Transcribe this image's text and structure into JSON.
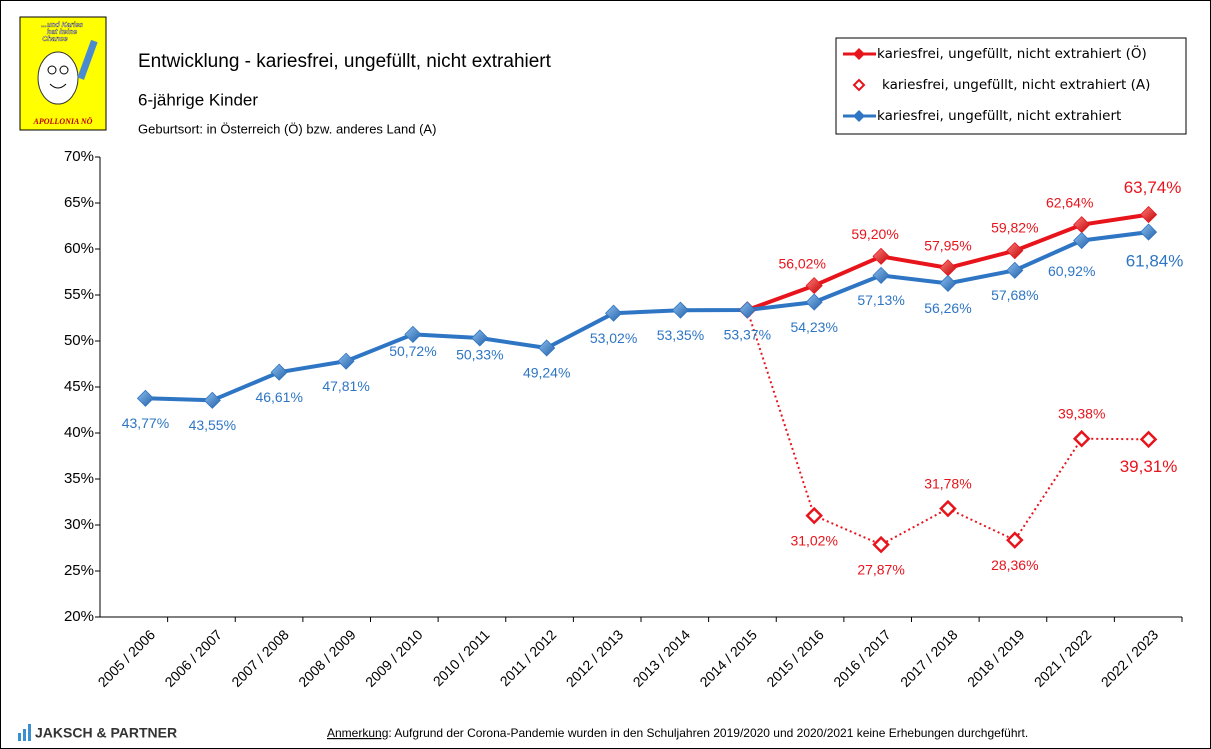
{
  "logo": {
    "lines": [
      "...und Karies",
      "hat keine",
      "Chance"
    ],
    "brand": "APOLLONIA NÖ"
  },
  "chart_data": {
    "type": "line",
    "title": "Entwicklung  - kariesfrei, ungefüllt,  nicht extrahiert",
    "subtitle": "6-jährige  Kinder",
    "note": "Geburtsort:  in Österreich (Ö) bzw. anderes Land (A)",
    "categories": [
      "2005 / 2006",
      "2006 / 2007",
      "2007 / 2008",
      "2008 / 2009",
      "2009 / 2010",
      "2010 / 2011",
      "2011 / 2012",
      "2012 / 2013",
      "2013 / 2014",
      "2014 / 2015",
      "2015 / 2016",
      "2016 / 2017",
      "2017 / 2018",
      "2018 / 2019",
      "2021 / 2022",
      "2022 / 2023"
    ],
    "series": [
      {
        "name": "kariesfrei, ungefüllt, nicht extrahiert (A)",
        "color": "#e8141c",
        "line_style": "dotted",
        "marker": "open-diamond",
        "values": [
          null,
          null,
          null,
          null,
          null,
          null,
          null,
          null,
          null,
          53.37,
          31.02,
          27.87,
          31.78,
          28.36,
          39.38,
          39.31
        ],
        "value_labels": [
          null,
          null,
          null,
          null,
          null,
          null,
          null,
          null,
          null,
          null,
          "31,02%",
          "27,87%",
          "31,78%",
          "28,36%",
          "39,38%",
          "39,31%"
        ]
      },
      {
        "name": "kariesfrei, ungefüllt, nicht extrahiert (Ö)",
        "color": "#e8141c",
        "line_style": "solid",
        "marker": "diamond",
        "values": [
          null,
          null,
          null,
          null,
          null,
          null,
          null,
          null,
          null,
          53.37,
          56.02,
          59.2,
          57.95,
          59.82,
          62.64,
          63.74
        ],
        "value_labels": [
          null,
          null,
          null,
          null,
          null,
          null,
          null,
          null,
          null,
          null,
          "56,02%",
          "59,20%",
          "57,95%",
          "59,82%",
          "62,64%",
          "63,74%"
        ]
      },
      {
        "name": "kariesfrei, ungefüllt, nicht extrahiert",
        "color": "#2e75c4",
        "line_style": "solid",
        "marker": "diamond",
        "values": [
          43.77,
          43.55,
          46.61,
          47.81,
          50.72,
          50.33,
          49.24,
          53.02,
          53.35,
          53.37,
          54.23,
          57.13,
          56.26,
          57.68,
          60.92,
          61.84
        ],
        "value_labels": [
          "43,77%",
          "43,55%",
          "46,61%",
          "47,81%",
          "50,72%",
          "50,33%",
          "49,24%",
          "53,02%",
          "53,35%",
          "53,37%",
          "54,23%",
          "57,13%",
          "56,26%",
          "57,68%",
          "60,92%",
          "61,84%"
        ]
      }
    ],
    "legend_order": [
      1,
      0,
      2
    ],
    "legend": "top-right",
    "ylim": [
      20,
      70
    ],
    "yticks": [
      {
        "value": 20,
        "label": "20%"
      },
      {
        "value": 25,
        "label": "25%"
      },
      {
        "value": 30,
        "label": "30%"
      },
      {
        "value": 35,
        "label": "35%"
      },
      {
        "value": 40,
        "label": "40%"
      },
      {
        "value": 45,
        "label": "45%"
      },
      {
        "value": 50,
        "label": "50%"
      },
      {
        "value": 55,
        "label": "55%"
      },
      {
        "value": 60,
        "label": "60%"
      },
      {
        "value": 65,
        "label": "65%"
      },
      {
        "value": 70,
        "label": "70%"
      }
    ],
    "grid": false
  },
  "footer": {
    "company": "JAKSCH & PARTNER",
    "note_label": "Anmerkung",
    "note_text": ": Aufgrund der Corona-Pandemie wurden in den Schuljahren 2019/2020 und 2020/2021 keine Erhebungen durchgeführt."
  }
}
